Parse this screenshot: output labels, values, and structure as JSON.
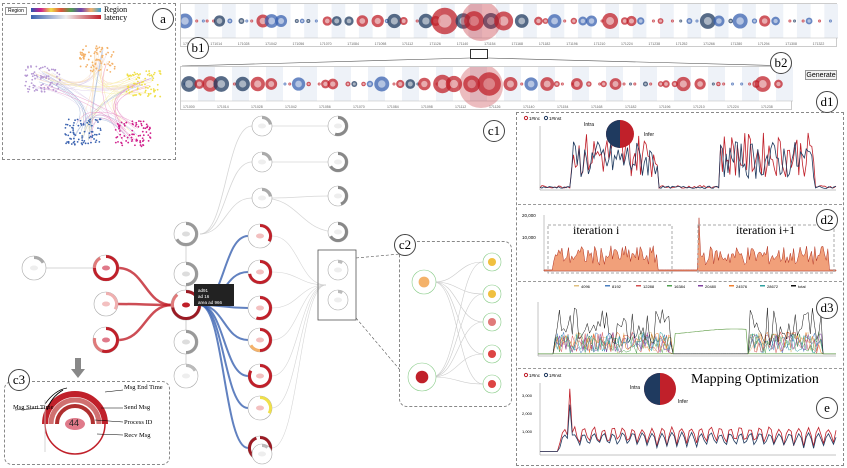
{
  "panel_badges": {
    "a": "a",
    "b1": "b1",
    "b2": "b2",
    "c1": "c1",
    "c2": "c2",
    "c3": "c3",
    "d1": "d1",
    "d2": "d2",
    "d3": "d3",
    "e": "e"
  },
  "panel_a": {
    "dropdown": "Region",
    "legend_region": "Region",
    "legend_latency": "latency"
  },
  "panel_b2": {
    "generate_label": "Generate"
  },
  "panel_d1": {
    "legend": [
      "1#Inc",
      "1#Inst"
    ],
    "pie_label": "Intra",
    "pie_label2": "Infer"
  },
  "panel_d2": {
    "ymax": "20,000",
    "ymid": "10,000",
    "iter_i": "iteration i",
    "iter_i1": "iteration i+1"
  },
  "panel_d3": {
    "legend": [
      "4096",
      "8192",
      "12288",
      "16384",
      "20480",
      "24576",
      "28672",
      "total"
    ]
  },
  "panel_e": {
    "title": "Mapping Optimization",
    "legend": [
      "1#Inc",
      "1#Inst"
    ],
    "pie_label": "Intra",
    "pie_label2": "Infer",
    "y_ticks": [
      "3,000",
      "2,000",
      "1,000"
    ]
  },
  "panel_c3": {
    "center": "44",
    "labels": [
      "Msg End Time",
      "Msg Start Time",
      "Send Msg",
      "Process ID",
      "Recv Msg"
    ]
  },
  "panel_c1": {
    "tooltip": [
      "ad91",
      "ad 16",
      "area ad 966"
    ]
  },
  "colors": {
    "red": "#c0202a",
    "dark_red": "#9b1b24",
    "navy": "#1f3a5f",
    "blue": "#3a62b0",
    "pink": "#d0208c",
    "yellow": "#f0e04a",
    "orange": "#f4b26a",
    "purple": "#b79ad4"
  }
}
